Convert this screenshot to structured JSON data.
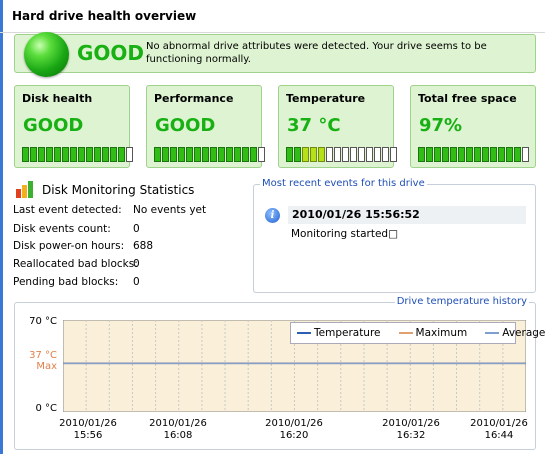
{
  "page": {
    "title": "Hard drive health overview"
  },
  "summary": {
    "status": "GOOD",
    "message": "No abnormal drive attributes were detected. Your drive seems to be functioning normally."
  },
  "cards": [
    {
      "label": "Disk health",
      "value": "GOOD",
      "segments_on": 13,
      "segments_mid": 0,
      "segments_total": 14
    },
    {
      "label": "Performance",
      "value": "GOOD",
      "segments_on": 13,
      "segments_mid": 0,
      "segments_total": 14
    },
    {
      "label": "Temperature",
      "value": "37 °C",
      "segments_on": 2,
      "segments_mid": 3,
      "segments_total": 14
    },
    {
      "label": "Total free space",
      "value": "97%",
      "segments_on": 13,
      "segments_mid": 0,
      "segments_total": 14
    }
  ],
  "stats": {
    "title": "Disk Monitoring Statistics",
    "rows": [
      {
        "label": "Last event detected:",
        "value": "No events yet"
      },
      {
        "label": "Disk events count:",
        "value": "0"
      },
      {
        "label": "Disk power-on hours:",
        "value": "688"
      },
      {
        "label": "Reallocated bad blocks:",
        "value": "0"
      },
      {
        "label": "Pending bad blocks:",
        "value": "0"
      }
    ]
  },
  "events": {
    "title": "Most recent events for this drive",
    "items": [
      {
        "timestamp": "2010/01/26 15:56:52",
        "text": "Monitoring started□",
        "icon": "info-icon"
      }
    ]
  },
  "history": {
    "title": "Drive temperature history",
    "y_top": "70 °C",
    "y_max_value": "37 °C",
    "y_max_label": "Max",
    "y_bottom": "0 °C",
    "legend": [
      {
        "name": "Temperature",
        "color": "#2a5fb5"
      },
      {
        "name": "Maximum",
        "color": "#e0a070"
      },
      {
        "name": "Average",
        "color": "#7f9fd0"
      }
    ],
    "x_labels": [
      {
        "date": "2010/01/26",
        "time": "15:56"
      },
      {
        "date": "2010/01/26",
        "time": "16:08"
      },
      {
        "date": "2010/01/26",
        "time": "16:20"
      },
      {
        "date": "2010/01/26",
        "time": "16:32"
      },
      {
        "date": "2010/01/26",
        "time": "16:44"
      }
    ]
  },
  "chart_data": {
    "type": "line",
    "title": "Drive temperature history",
    "xlabel": "",
    "ylabel": "",
    "ylim": [
      0,
      70
    ],
    "x": [
      "15:56",
      "16:08",
      "16:20",
      "16:32",
      "16:44"
    ],
    "series": [
      {
        "name": "Temperature",
        "values": [
          37,
          37,
          37,
          37,
          37
        ]
      },
      {
        "name": "Maximum",
        "values": [
          37,
          37,
          37,
          37,
          37
        ]
      },
      {
        "name": "Average",
        "values": [
          37,
          37,
          37,
          37,
          37
        ]
      }
    ],
    "grid": true,
    "legend": "top-right"
  },
  "colors": {
    "good_green": "#19b014",
    "accent_blue": "#1f4fb5",
    "panel_green": "#ddf3d1",
    "plot_bg": "#faefd9"
  }
}
